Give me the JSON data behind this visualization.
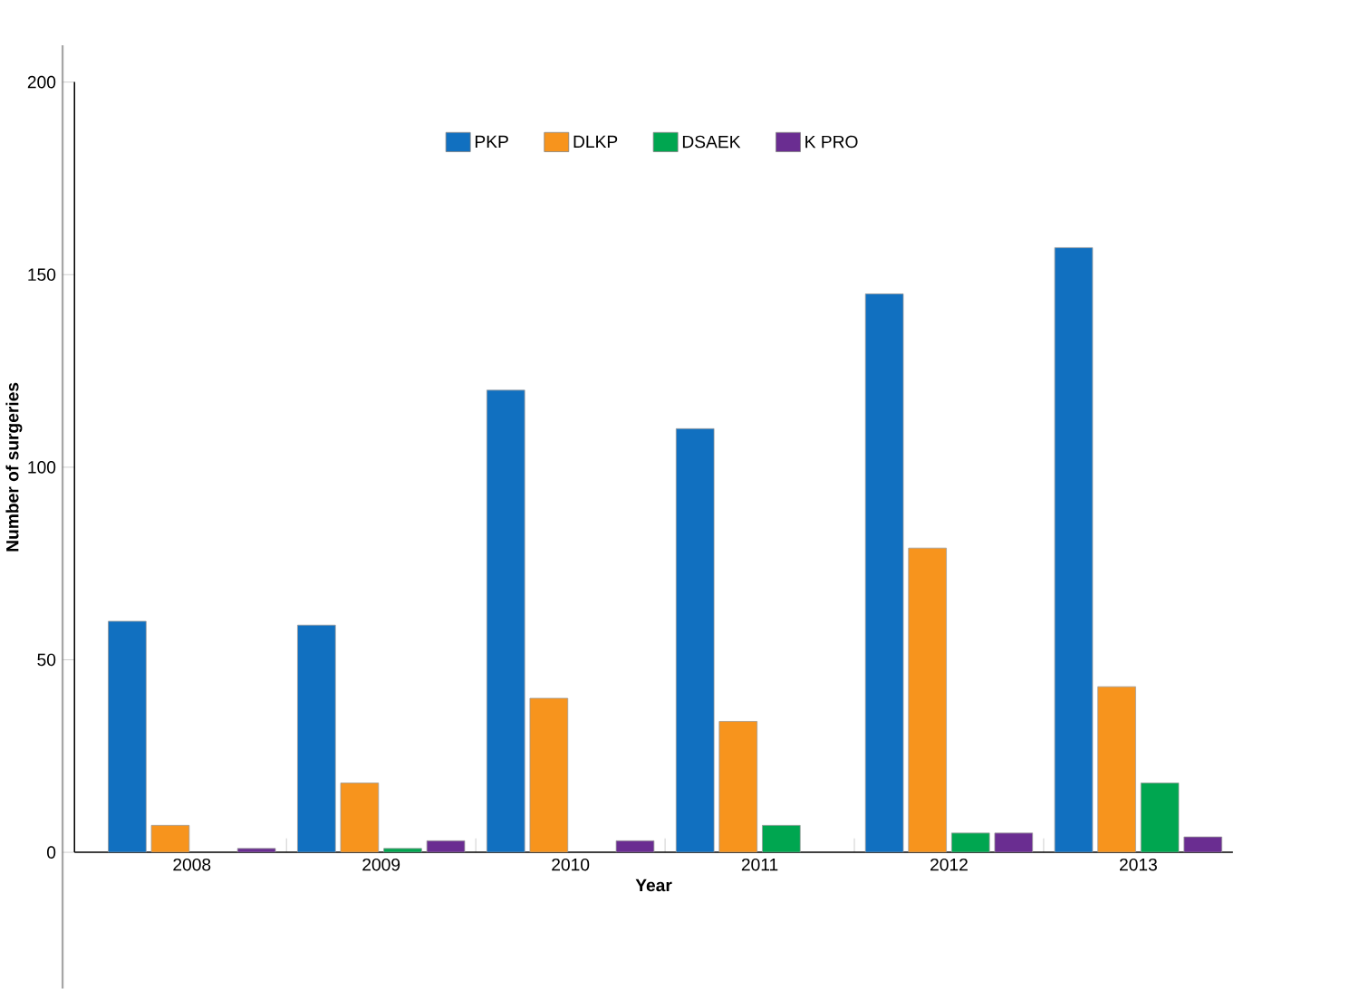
{
  "chart_data": {
    "type": "bar",
    "xlabel": "Year",
    "ylabel": "Number of surgeries",
    "categories": [
      "2008",
      "2009",
      "2010",
      "2011",
      "2012",
      "2013"
    ],
    "series": [
      {
        "name": "PKP",
        "color": "#1170c0",
        "values": [
          60,
          59,
          120,
          110,
          145,
          157
        ]
      },
      {
        "name": "DLKP",
        "color": "#f7941d",
        "values": [
          7,
          18,
          40,
          34,
          79,
          43
        ]
      },
      {
        "name": "DSAEK",
        "color": "#00a650",
        "values": [
          null,
          1,
          null,
          7,
          5,
          18
        ]
      },
      {
        "name": "K PRO",
        "color": "#6a2d91",
        "values": [
          1,
          3,
          3,
          null,
          5,
          4
        ]
      }
    ],
    "ylim": [
      0,
      200
    ],
    "yticks": [
      0,
      50,
      100,
      150,
      200
    ],
    "legend": "top",
    "grid": false
  }
}
